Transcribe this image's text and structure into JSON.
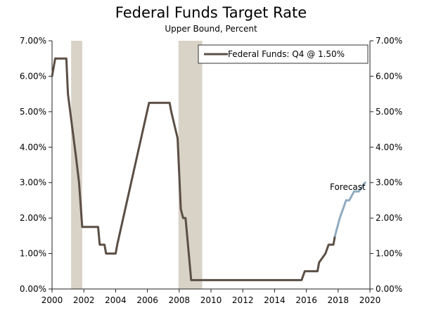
{
  "chart_data": {
    "type": "line",
    "title": "Federal Funds Target Rate",
    "subtitle": "Upper Bound, Percent",
    "xlabel": "",
    "ylabel": "",
    "xlim": [
      2000,
      2020
    ],
    "ylim": [
      0,
      7
    ],
    "x_ticks": [
      2000,
      2002,
      2004,
      2006,
      2008,
      2010,
      2012,
      2014,
      2016,
      2018,
      2020
    ],
    "x_tick_labels": [
      "2000",
      "2002",
      "2004",
      "2006",
      "2008",
      "2010",
      "2012",
      "2014",
      "2016",
      "2018",
      "2020"
    ],
    "y_ticks": [
      0,
      1,
      2,
      3,
      4,
      5,
      6,
      7
    ],
    "y_tick_labels": [
      "0.00%",
      "1.00%",
      "2.00%",
      "3.00%",
      "4.00%",
      "5.00%",
      "6.00%",
      "7.00%"
    ],
    "grid": false,
    "legend_position": "top-right",
    "legend_label": "Federal Funds: Q4 @ 1.50%",
    "recession_bands": [
      [
        2001.2,
        2001.9
      ],
      [
        2007.95,
        2009.45
      ]
    ],
    "series": [
      {
        "name": "Federal Funds: Q4 @ 1.50%",
        "color": "#5b4e44",
        "x": [
          2000.0,
          2000.2,
          2000.4,
          2000.9,
          2001.0,
          2001.5,
          2001.7,
          2001.9,
          2002.0,
          2002.9,
          2003.0,
          2003.3,
          2003.4,
          2004.0,
          2004.1,
          2006.1,
          2006.2,
          2007.4,
          2007.5,
          2007.9,
          2008.1,
          2008.25,
          2008.4,
          2008.6,
          2008.75,
          2009.0,
          2015.7,
          2015.9,
          2016.7,
          2016.8,
          2017.2,
          2017.4,
          2017.5,
          2017.7,
          2017.8
        ],
        "y": [
          6.0,
          6.5,
          6.5,
          6.5,
          5.5,
          3.75,
          3.0,
          1.75,
          1.75,
          1.75,
          1.25,
          1.25,
          1.0,
          1.0,
          1.25,
          5.25,
          5.25,
          5.25,
          5.0,
          4.25,
          2.25,
          2.0,
          2.0,
          1.0,
          0.25,
          0.25,
          0.25,
          0.5,
          0.5,
          0.75,
          1.0,
          1.25,
          1.25,
          1.25,
          1.5
        ]
      },
      {
        "name": "Forecast",
        "color": "#8fabc0",
        "x": [
          2017.8,
          2018.1,
          2018.5,
          2018.7,
          2019.0,
          2019.3,
          2019.7
        ],
        "y": [
          1.5,
          2.0,
          2.5,
          2.5,
          2.75,
          2.75,
          3.0
        ]
      }
    ],
    "annotations": [
      {
        "text": "Forecast",
        "x": 2018.6,
        "y": 2.8
      }
    ]
  }
}
